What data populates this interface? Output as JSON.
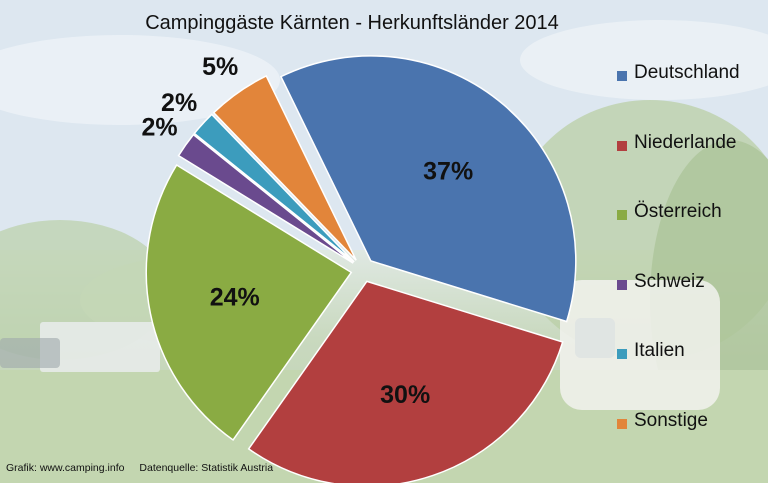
{
  "title": "Campinggäste Kärnten - Herkunftsländer 2014",
  "chart_data": {
    "type": "pie",
    "title": "Campinggäste Kärnten - Herkunftsländer 2014",
    "categories": [
      "Deutschland",
      "Niederlande",
      "Österreich",
      "Schweiz",
      "Italien",
      "Sonstige"
    ],
    "values": [
      37,
      30,
      24,
      2,
      2,
      5
    ],
    "labels": [
      "37%",
      "30%",
      "24%",
      "2%",
      "2%",
      "5%"
    ],
    "colors": [
      "#4a74ae",
      "#b23f3f",
      "#8aab43",
      "#6a4a8e",
      "#3c9cbd",
      "#e2853a"
    ],
    "exploded": true,
    "legend": "right"
  },
  "footer": {
    "credit": "Grafik: www.camping.info",
    "source": "Datenquelle: Statistik Austria"
  }
}
